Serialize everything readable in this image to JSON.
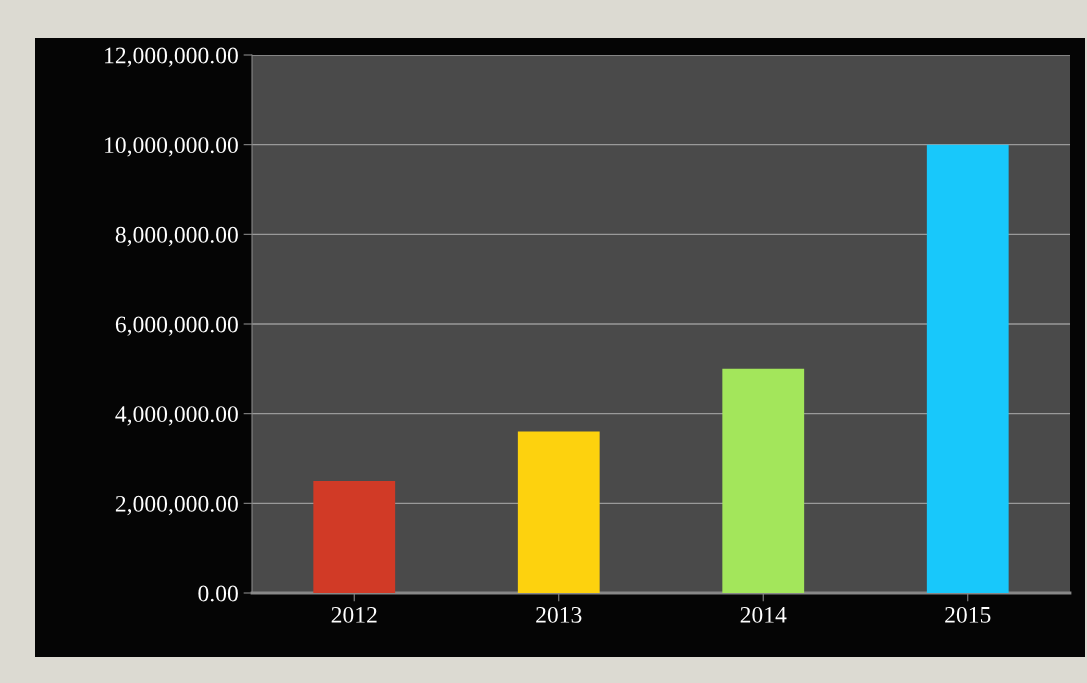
{
  "chart_data": {
    "type": "bar",
    "categories": [
      "2012",
      "2013",
      "2014",
      "2015"
    ],
    "values": [
      2500000,
      3600000,
      5000000,
      10000000
    ],
    "colors": [
      "#d13a26",
      "#fdd20e",
      "#a3e65b",
      "#18c8fb"
    ],
    "ylim": [
      0,
      12000000
    ],
    "yticks": [
      {
        "value": 0,
        "label": "0.00"
      },
      {
        "value": 2000000,
        "label": "2,000,000.00"
      },
      {
        "value": 4000000,
        "label": "4,000,000.00"
      },
      {
        "value": 6000000,
        "label": "6,000,000.00"
      },
      {
        "value": 8000000,
        "label": "8,000,000.00"
      },
      {
        "value": 10000000,
        "label": "10,000,000.00"
      },
      {
        "value": 12000000,
        "label": "12,000,000.00"
      }
    ],
    "grid": "y",
    "legend": false
  }
}
